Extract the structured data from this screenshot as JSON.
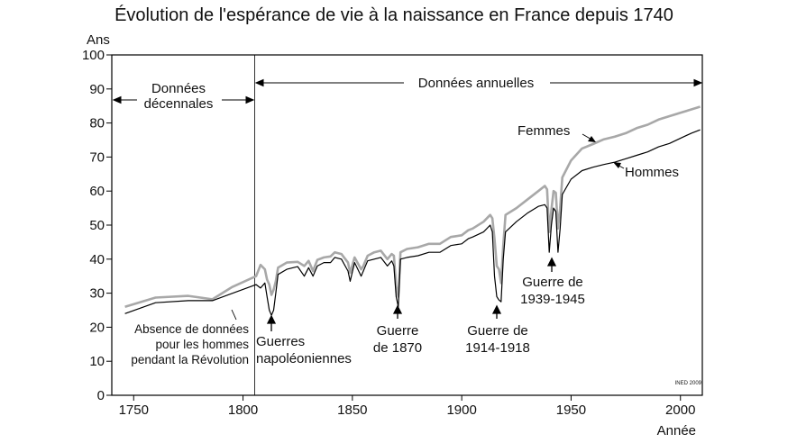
{
  "chart_data": {
    "type": "line",
    "title": "Évolution de l'espérance de vie à la naissance en France depuis 1740",
    "ylabel": "Ans",
    "xlabel": "Année",
    "xlim": [
      1740,
      2010
    ],
    "ylim": [
      0,
      100
    ],
    "xticks": [
      1750,
      1800,
      1850,
      1900,
      1950,
      2000
    ],
    "yticks": [
      0,
      10,
      20,
      30,
      40,
      50,
      60,
      70,
      80,
      90,
      100
    ],
    "source": "INED 2009",
    "series": [
      {
        "name": "Femmes",
        "color": "#a8a8a8",
        "points": [
          [
            1746,
            26
          ],
          [
            1760,
            28.7
          ],
          [
            1775,
            29.2
          ],
          [
            1786,
            28.2
          ],
          [
            1795,
            31.8
          ],
          [
            1806,
            35
          ],
          [
            1808,
            38.3
          ],
          [
            1810,
            37
          ],
          [
            1811,
            34
          ],
          [
            1812,
            32.5
          ],
          [
            1813,
            29.5
          ],
          [
            1814,
            31
          ],
          [
            1815,
            33.5
          ],
          [
            1816,
            37.5
          ],
          [
            1820,
            39
          ],
          [
            1825,
            39.2
          ],
          [
            1828,
            38
          ],
          [
            1830,
            39.5
          ],
          [
            1832,
            36.5
          ],
          [
            1834,
            39.8
          ],
          [
            1837,
            40.5
          ],
          [
            1840,
            40.8
          ],
          [
            1842,
            42
          ],
          [
            1845,
            41.5
          ],
          [
            1848,
            39
          ],
          [
            1849,
            36
          ],
          [
            1851,
            40.5
          ],
          [
            1854,
            37
          ],
          [
            1855,
            38
          ],
          [
            1857,
            41
          ],
          [
            1860,
            42
          ],
          [
            1863,
            42.5
          ],
          [
            1866,
            40
          ],
          [
            1868,
            41.5
          ],
          [
            1869,
            41
          ],
          [
            1870,
            32
          ],
          [
            1871,
            29
          ],
          [
            1872,
            42
          ],
          [
            1875,
            43
          ],
          [
            1880,
            43.5
          ],
          [
            1885,
            44.5
          ],
          [
            1890,
            44.5
          ],
          [
            1895,
            46.5
          ],
          [
            1900,
            47
          ],
          [
            1903,
            48.5
          ],
          [
            1905,
            49
          ],
          [
            1910,
            51
          ],
          [
            1913,
            53
          ],
          [
            1914,
            52
          ],
          [
            1915,
            46
          ],
          [
            1916,
            38
          ],
          [
            1917,
            37
          ],
          [
            1918,
            33
          ],
          [
            1919,
            44
          ],
          [
            1920,
            53
          ],
          [
            1925,
            55
          ],
          [
            1930,
            57.5
          ],
          [
            1935,
            60
          ],
          [
            1938,
            61.5
          ],
          [
            1939,
            60.5
          ],
          [
            1940,
            48
          ],
          [
            1941,
            54.5
          ],
          [
            1942,
            60
          ],
          [
            1943,
            59.5
          ],
          [
            1944,
            49
          ],
          [
            1945,
            55
          ],
          [
            1946,
            64
          ],
          [
            1950,
            69
          ],
          [
            1955,
            72.5
          ],
          [
            1960,
            73.8
          ],
          [
            1965,
            75.2
          ],
          [
            1970,
            76
          ],
          [
            1975,
            77
          ],
          [
            1980,
            78.5
          ],
          [
            1985,
            79.5
          ],
          [
            1990,
            81
          ],
          [
            1995,
            82
          ],
          [
            2000,
            83
          ],
          [
            2005,
            84
          ],
          [
            2009,
            84.8
          ]
        ]
      },
      {
        "name": "Hommes",
        "color": "#000000",
        "points": [
          [
            1746,
            24
          ],
          [
            1760,
            27.2
          ],
          [
            1775,
            27.8
          ],
          [
            1786,
            27.8
          ],
          [
            1806,
            32.5
          ],
          [
            1808,
            31.5
          ],
          [
            1810,
            33
          ],
          [
            1811,
            29
          ],
          [
            1812,
            25
          ],
          [
            1813,
            23.5
          ],
          [
            1814,
            25
          ],
          [
            1815,
            30
          ],
          [
            1816,
            35.5
          ],
          [
            1820,
            37
          ],
          [
            1825,
            37.8
          ],
          [
            1828,
            35
          ],
          [
            1830,
            37.5
          ],
          [
            1832,
            35
          ],
          [
            1834,
            38
          ],
          [
            1837,
            39
          ],
          [
            1840,
            39
          ],
          [
            1842,
            40.5
          ],
          [
            1845,
            40
          ],
          [
            1848,
            36.5
          ],
          [
            1849,
            33.5
          ],
          [
            1851,
            39
          ],
          [
            1854,
            35
          ],
          [
            1855,
            36.5
          ],
          [
            1857,
            39.5
          ],
          [
            1860,
            40
          ],
          [
            1863,
            40.5
          ],
          [
            1866,
            38
          ],
          [
            1868,
            39.5
          ],
          [
            1869,
            38
          ],
          [
            1870,
            29
          ],
          [
            1871,
            26
          ],
          [
            1872,
            40
          ],
          [
            1875,
            40.5
          ],
          [
            1880,
            41
          ],
          [
            1885,
            42
          ],
          [
            1890,
            42
          ],
          [
            1895,
            44
          ],
          [
            1900,
            44.5
          ],
          [
            1903,
            46
          ],
          [
            1905,
            46.5
          ],
          [
            1910,
            48
          ],
          [
            1913,
            50
          ],
          [
            1914,
            48
          ],
          [
            1915,
            35
          ],
          [
            1916,
            29
          ],
          [
            1917,
            28
          ],
          [
            1918,
            27.5
          ],
          [
            1919,
            40
          ],
          [
            1920,
            48
          ],
          [
            1925,
            51
          ],
          [
            1930,
            53.5
          ],
          [
            1935,
            55.5
          ],
          [
            1938,
            56
          ],
          [
            1939,
            55
          ],
          [
            1940,
            42
          ],
          [
            1941,
            50
          ],
          [
            1942,
            55
          ],
          [
            1943,
            54
          ],
          [
            1944,
            42
          ],
          [
            1945,
            49
          ],
          [
            1946,
            59
          ],
          [
            1950,
            63.5
          ],
          [
            1955,
            66
          ],
          [
            1960,
            67
          ],
          [
            1965,
            67.8
          ],
          [
            1970,
            68.5
          ],
          [
            1975,
            69.5
          ],
          [
            1980,
            70.5
          ],
          [
            1985,
            71.5
          ],
          [
            1990,
            73
          ],
          [
            1995,
            74
          ],
          [
            2000,
            75.5
          ],
          [
            2005,
            77
          ],
          [
            2009,
            78
          ]
        ]
      }
    ],
    "annotations": {
      "decennial": [
        "Données",
        "décennales"
      ],
      "annual": "Données annuelles",
      "absence": [
        "Absence de données",
        "pour les hommes",
        "pendant la Révolution"
      ],
      "napoleonic": [
        "Guerres",
        "napoléoniennes"
      ],
      "war1870": [
        "Guerre",
        "de 1870"
      ],
      "war1914": [
        "Guerre de",
        "1914-1918"
      ],
      "war1939": [
        "Guerre de",
        "1939-1945"
      ],
      "femmes": "Femmes",
      "hommes": "Hommes"
    }
  }
}
